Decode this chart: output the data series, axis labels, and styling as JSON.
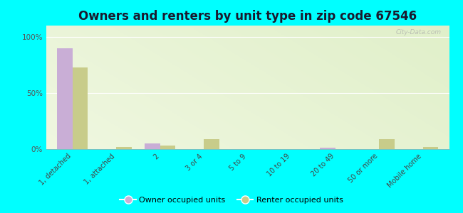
{
  "title": "Owners and renters by unit type in zip code 67546",
  "categories": [
    "1, detached",
    "1, attached",
    "2",
    "3 or 4",
    "5 to 9",
    "10 to 19",
    "20 to 49",
    "50 or more",
    "Mobile home"
  ],
  "owner_values": [
    90,
    0,
    5,
    0,
    0,
    0,
    1,
    0,
    0
  ],
  "renter_values": [
    73,
    2,
    3,
    9,
    0,
    0,
    0,
    9,
    2
  ],
  "owner_color": "#c9aed6",
  "renter_color": "#c8cc8a",
  "background_color": "#00ffff",
  "title_fontsize": 12,
  "ylabel_ticks": [
    "0%",
    "50%",
    "100%"
  ],
  "yticks": [
    0,
    50,
    100
  ],
  "ylim": [
    0,
    110
  ],
  "legend_owner": "Owner occupied units",
  "legend_renter": "Renter occupied units",
  "watermark": "City-Data.com"
}
